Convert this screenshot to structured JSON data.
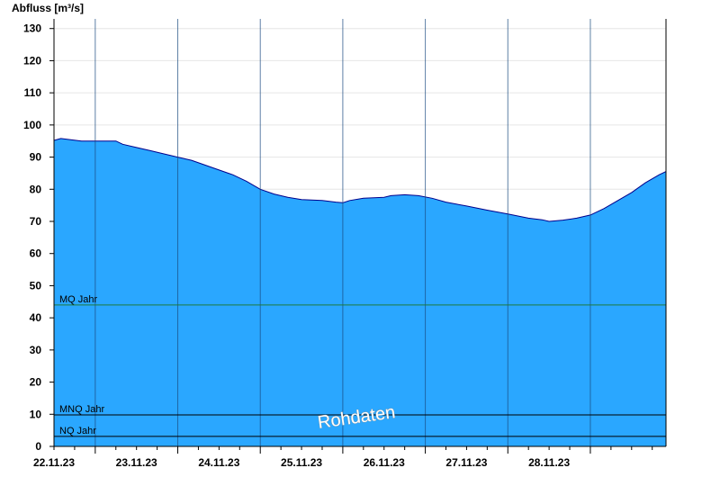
{
  "chart_data": {
    "type": "area",
    "ylabel": "Abfluss [m³/s]",
    "ylim": [
      0,
      133
    ],
    "yticks": [
      0,
      10,
      20,
      30,
      40,
      50,
      60,
      70,
      80,
      90,
      100,
      110,
      120,
      130
    ],
    "xlim": [
      "2023-11-21T12:00",
      "2023-11-28T22:00"
    ],
    "x_tick_labels": [
      "22.11.23",
      "23.11.23",
      "24.11.23",
      "25.11.23",
      "26.11.23",
      "27.11.23",
      "28.11.23"
    ],
    "grid": "horizontal-light",
    "watermark": "Rohdaten",
    "reference_lines": [
      {
        "label": "MQ Jahr",
        "value": 44,
        "color": "#1f7a3a"
      },
      {
        "label": "MNQ Jahr",
        "value": 9.8,
        "color": "#000000"
      },
      {
        "label": "NQ Jahr",
        "value": 3.1,
        "color": "#000000"
      }
    ],
    "series": [
      {
        "fill_color": "#2aa7ff",
        "line_color": "#00008b",
        "points": [
          [
            "2023-11-21T12:00",
            95.2
          ],
          [
            "2023-11-21T14:00",
            95.8
          ],
          [
            "2023-11-21T20:00",
            95
          ],
          [
            "2023-11-22T06:00",
            95
          ],
          [
            "2023-11-22T08:00",
            94
          ],
          [
            "2023-11-22T12:00",
            93
          ],
          [
            "2023-11-22T16:00",
            92
          ],
          [
            "2023-11-22T20:00",
            91
          ],
          [
            "2023-11-23T00:00",
            90
          ],
          [
            "2023-11-23T04:00",
            89
          ],
          [
            "2023-11-23T08:00",
            87.5
          ],
          [
            "2023-11-23T12:00",
            86
          ],
          [
            "2023-11-23T16:00",
            84.5
          ],
          [
            "2023-11-23T20:00",
            82.5
          ],
          [
            "2023-11-24T00:00",
            80
          ],
          [
            "2023-11-24T04:00",
            78.5
          ],
          [
            "2023-11-24T08:00",
            77.5
          ],
          [
            "2023-11-24T12:00",
            76.8
          ],
          [
            "2023-11-24T18:00",
            76.5
          ],
          [
            "2023-11-24T22:00",
            76
          ],
          [
            "2023-11-25T00:00",
            75.8
          ],
          [
            "2023-11-25T02:00",
            76.5
          ],
          [
            "2023-11-25T06:00",
            77.2
          ],
          [
            "2023-11-25T12:00",
            77.5
          ],
          [
            "2023-11-25T14:00",
            78
          ],
          [
            "2023-11-25T18:00",
            78.3
          ],
          [
            "2023-11-25T22:00",
            78
          ],
          [
            "2023-11-26T02:00",
            77.2
          ],
          [
            "2023-11-26T06:00",
            76
          ],
          [
            "2023-11-26T12:00",
            74.8
          ],
          [
            "2023-11-26T18:00",
            73.5
          ],
          [
            "2023-11-27T00:00",
            72.3
          ],
          [
            "2023-11-27T06:00",
            71
          ],
          [
            "2023-11-27T10:00",
            70.5
          ],
          [
            "2023-11-27T12:00",
            70
          ],
          [
            "2023-11-27T16:00",
            70.4
          ],
          [
            "2023-11-27T20:00",
            71
          ],
          [
            "2023-11-28T00:00",
            72
          ],
          [
            "2023-11-28T04:00",
            74
          ],
          [
            "2023-11-28T08:00",
            76.5
          ],
          [
            "2023-11-28T12:00",
            79
          ],
          [
            "2023-11-28T16:00",
            82
          ],
          [
            "2023-11-28T20:00",
            84.5
          ],
          [
            "2023-11-28T22:00",
            85.5
          ]
        ]
      }
    ]
  }
}
